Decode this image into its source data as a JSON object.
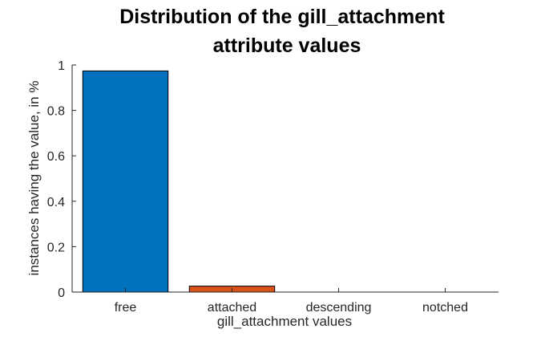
{
  "chart_data": {
    "type": "bar",
    "title": [
      "Distribution of the gill_attachment",
      "attribute values"
    ],
    "xlabel": "gill_attachment values",
    "ylabel": "instances having the value, in %",
    "categories": [
      "free",
      "attached",
      "descending",
      "notched"
    ],
    "values": [
      0.974,
      0.026,
      0.0,
      0.0
    ],
    "colors": [
      "#0072BD",
      "#D95319",
      "#EDB120",
      "#7E2F8E"
    ],
    "ylim": [
      0,
      1
    ],
    "yticks": [
      "0",
      "0.2",
      "0.4",
      "0.6",
      "0.8",
      "1"
    ],
    "grid": false,
    "legend": "none"
  }
}
